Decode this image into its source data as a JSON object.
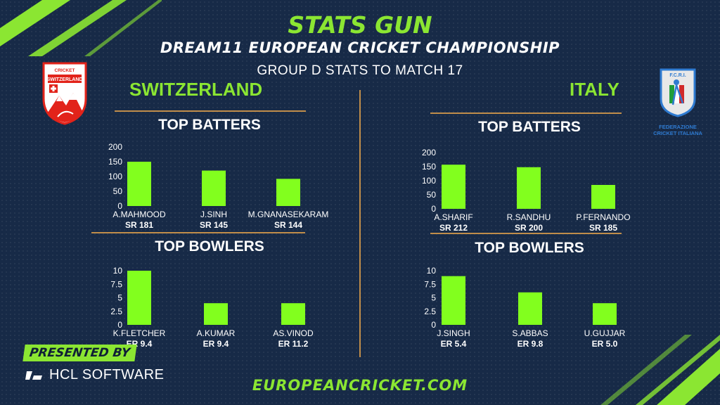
{
  "brand": "STATS GUN",
  "event": "DREAM11 EUROPEAN CRICKET CHAMPIONSHIP",
  "subtitle": "GROUP D STATS TO MATCH 17",
  "teams": {
    "left": {
      "name": "SWITZERLAND",
      "logo_text_top": "CRICKET",
      "logo_text_main": "SWITZERLAND"
    },
    "right": {
      "name": "ITALY",
      "logo_text_top": "F.C.R.I.",
      "logo_text_line1": "FEDERAZIONE",
      "logo_text_line2": "CRICKET ITALIANA"
    }
  },
  "presented_by": "PRESENTED BY",
  "sponsor": "HCL SOFTWARE",
  "website": "EUROPEANCRICKET.COM",
  "colors": {
    "accent": "#8be632",
    "bar": "#82ff1e",
    "divider": "#c08d4a",
    "background": "#172a47"
  },
  "chart_data": [
    {
      "id": "sui-batters",
      "type": "bar",
      "title": "TOP BATTERS",
      "categories": [
        "A.MAHMOOD",
        "J.SINH",
        "M.GNANASEKARAM"
      ],
      "values": [
        150,
        120,
        92
      ],
      "sublabels": [
        "SR 181",
        "SR 145",
        "SR 144"
      ],
      "ylim": [
        0,
        200
      ],
      "yticks": [
        "0",
        "50",
        "100",
        "150",
        "200"
      ]
    },
    {
      "id": "sui-bowlers",
      "type": "bar",
      "title": "TOP BOWLERS",
      "categories": [
        "K.FLETCHER",
        "A.KUMAR",
        "AS.VINOD"
      ],
      "values": [
        10,
        4,
        4
      ],
      "sublabels": [
        "ER 9.4",
        "ER 9.4",
        "ER 11.2"
      ],
      "ylim": [
        0,
        10
      ],
      "yticks": [
        "0",
        "2.5",
        "5",
        "7.5",
        "10"
      ]
    },
    {
      "id": "ita-batters",
      "type": "bar",
      "title": "TOP BATTERS",
      "categories": [
        "A.SHARIF",
        "R.SANDHU",
        "P.FERNANDO"
      ],
      "values": [
        157,
        148,
        85
      ],
      "sublabels": [
        "SR 212",
        "SR 200",
        "SR 185"
      ],
      "ylim": [
        0,
        200
      ],
      "yticks": [
        "0",
        "50",
        "100",
        "150",
        "200"
      ]
    },
    {
      "id": "ita-bowlers",
      "type": "bar",
      "title": "TOP BOWLERS",
      "categories": [
        "J.SINGH",
        "S.ABBAS",
        "U.GUJJAR"
      ],
      "values": [
        9,
        6,
        4
      ],
      "sublabels": [
        "ER 5.4",
        "ER 9.8",
        "ER 5.0"
      ],
      "ylim": [
        0,
        10
      ],
      "yticks": [
        "0",
        "2.5",
        "5",
        "7.5",
        "10"
      ]
    }
  ]
}
